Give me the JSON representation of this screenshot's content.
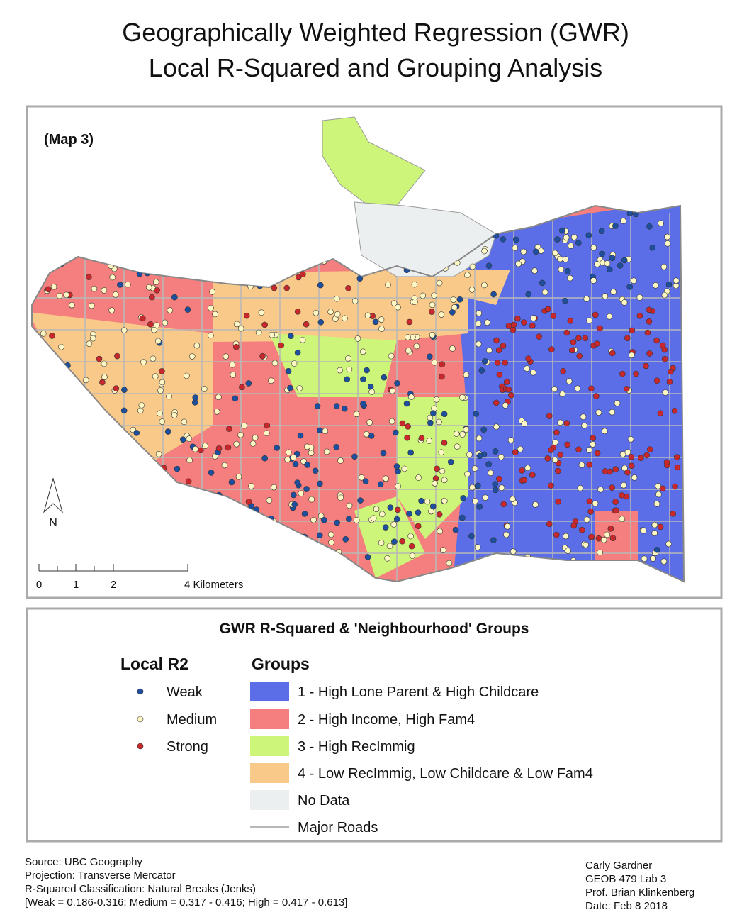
{
  "header": {
    "title_lines": [
      "Geographically Weighted Regression (GWR)",
      "Local R-Squared and Grouping Analysis"
    ]
  },
  "map": {
    "label": "(Map 3)",
    "north_arrow": "N",
    "scale_bar_labels": [
      "0",
      "1",
      "2",
      "4 Kilometers"
    ]
  },
  "legend": {
    "title": "GWR R-Squared & 'Neighbourhood' Groups",
    "local_r2": {
      "heading": "Local R2",
      "items": [
        {
          "label": "Weak",
          "color": "#1d4f9e"
        },
        {
          "label": "Medium",
          "color": "#fdf7c3"
        },
        {
          "label": "Strong",
          "color": "#c8282b"
        }
      ]
    },
    "groups": {
      "heading": "Groups",
      "items": [
        {
          "label": "1 - High Lone Parent & High Childcare",
          "color": "#5b6ee8"
        },
        {
          "label": "2 - High Income, High Fam4",
          "color": "#f47f7e"
        },
        {
          "label": "3 - High RecImmig",
          "color": "#cdf57a"
        },
        {
          "label": "4 - Low RecImmig, Low Childcare & Low Fam4",
          "color": "#f9c98a"
        },
        {
          "label": "No Data",
          "color": "#eceff0"
        },
        {
          "label": "Major Roads",
          "color": "#b8b8b8"
        }
      ]
    }
  },
  "footer": {
    "source_lines": [
      "Source: UBC Geography",
      "Projection: Transverse Mercator",
      "R-Squared Classification: Natural Breaks (Jenks)",
      "[Weak = 0.186-0.316; Medium = 0.317 - 0.416; High = 0.417 - 0.613]"
    ],
    "author_lines": [
      "Carly Gardner",
      "GEOB 479 Lab 3",
      "Prof. Brian Klinkenberg",
      "Date: Feb 8 2018"
    ]
  }
}
